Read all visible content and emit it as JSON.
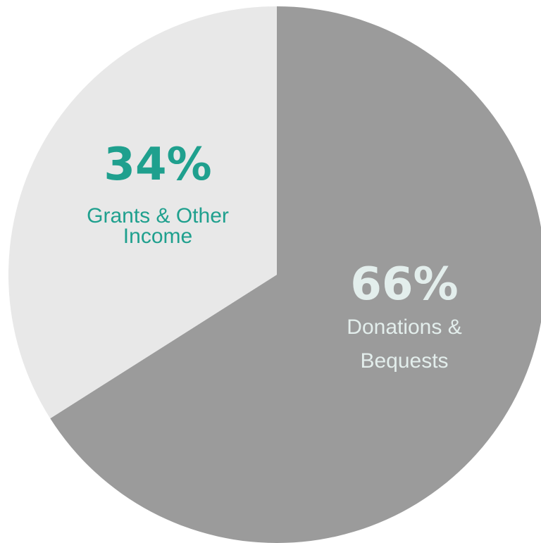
{
  "chart_data": {
    "type": "pie",
    "slices": [
      {
        "percent_label": "66%",
        "value": 66,
        "label_lines": [
          "Donations &",
          "Bequests"
        ],
        "color": "#9b9b9b",
        "text_color": "#e3eeec"
      },
      {
        "percent_label": "34%",
        "value": 34,
        "label_lines": [
          "Grants & Other",
          "Income"
        ],
        "color": "#e8e8e8",
        "text_color": "#1fa08e"
      }
    ],
    "start_angle": "12 o'clock",
    "direction": "clockwise",
    "legend": "none"
  }
}
